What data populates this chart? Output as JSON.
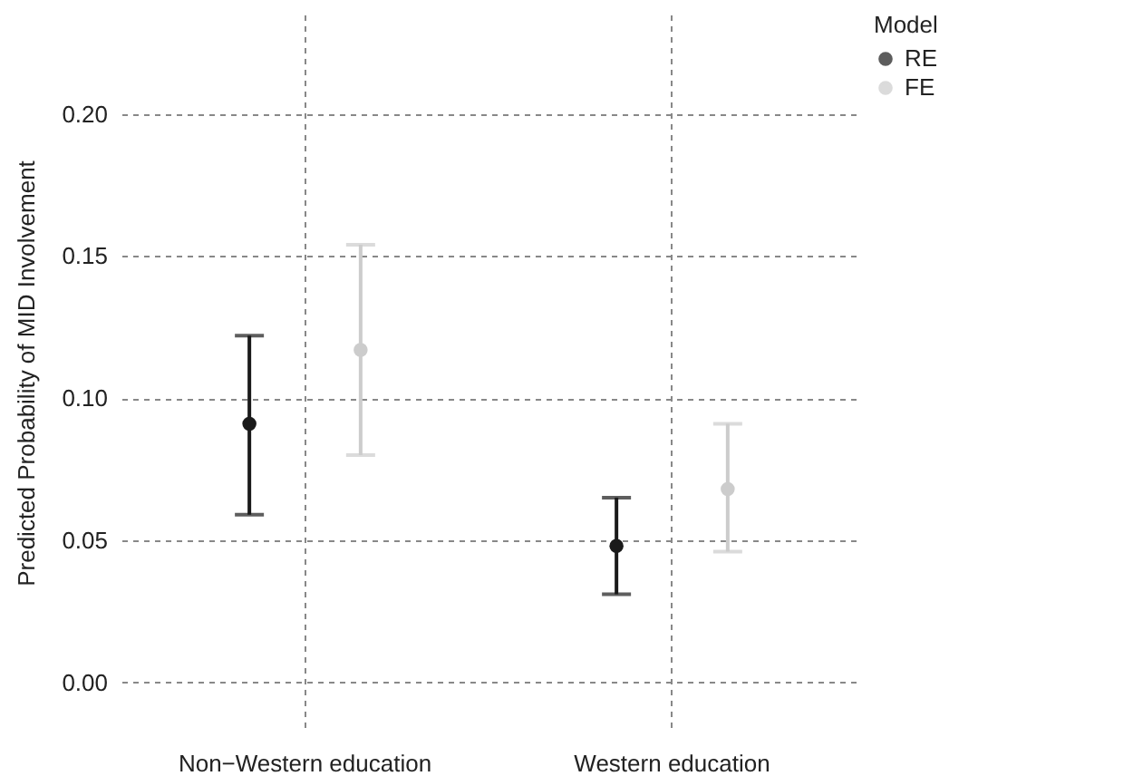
{
  "chart_data": {
    "type": "scatter",
    "ylabel": "Predicted Probability of MID Involvement",
    "categories": [
      "Non−Western education",
      "Western education"
    ],
    "series": [
      {
        "name": "RE",
        "color": "#1a1a1a",
        "values": [
          0.091,
          0.048
        ],
        "errors": [
          [
            0.059,
            0.122
          ],
          [
            0.031,
            0.065
          ]
        ]
      },
      {
        "name": "FE",
        "color": "#cccccc",
        "values": [
          0.117,
          0.068
        ],
        "errors": [
          [
            0.08,
            0.154
          ],
          [
            0.046,
            0.091
          ]
        ]
      }
    ],
    "legend_title": "Model",
    "legend": "right",
    "marker": "circle",
    "grid": true,
    "ylim": [
      -0.017,
      0.235
    ],
    "yticks": [
      {
        "value": 0,
        "label": "0.00"
      },
      {
        "value": 0.05,
        "label": "0.05"
      },
      {
        "value": 0.1,
        "label": "0.10"
      },
      {
        "value": 0.15,
        "label": "0.15"
      },
      {
        "value": 0.2,
        "label": "0.20"
      }
    ]
  }
}
